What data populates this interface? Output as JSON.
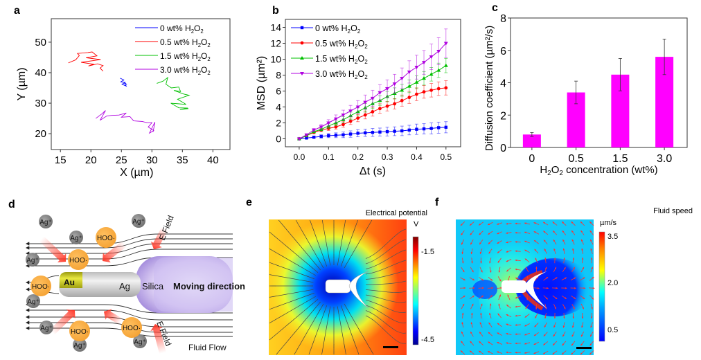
{
  "panel_labels": [
    "a",
    "b",
    "c",
    "d",
    "e",
    "f"
  ],
  "chart_data": [
    {
      "panel": "a",
      "type": "line",
      "xlabel": "X (µm)",
      "ylabel": "Y (µm)",
      "xlim": [
        13.5,
        42.8
      ],
      "ylim": [
        14.8,
        57.7
      ],
      "xticks": [
        15,
        20,
        25,
        30,
        35,
        40
      ],
      "yticks": [
        20,
        30,
        40,
        50
      ],
      "legend_position": "top-right",
      "series": [
        {
          "name": "0 wt% H2O2",
          "color": "#0000ff",
          "points": [
            [
              24.8,
              38.2
            ],
            [
              25.4,
              37.6
            ],
            [
              24.9,
              37.0
            ],
            [
              25.6,
              36.8
            ],
            [
              25.1,
              36.2
            ],
            [
              25.8,
              35.6
            ],
            [
              25.4,
              36.9
            ],
            [
              25.9,
              36.1
            ]
          ]
        },
        {
          "name": "0.5 wt% H2O2",
          "color": "#ff0000",
          "points": [
            [
              16.3,
              43.2
            ],
            [
              17.5,
              44.2
            ],
            [
              18.1,
              45.6
            ],
            [
              17.8,
              46.3
            ],
            [
              19.5,
              46.6
            ],
            [
              20.2,
              46.8
            ],
            [
              21.0,
              45.5
            ],
            [
              19.2,
              44.9
            ],
            [
              21.6,
              44.3
            ],
            [
              18.4,
              43.4
            ],
            [
              20.4,
              42.8
            ],
            [
              19.6,
              42.2
            ],
            [
              21.1,
              42.9
            ],
            [
              22.0,
              42.3
            ],
            [
              21.5,
              41.5
            ],
            [
              22.0,
              40.5
            ]
          ]
        },
        {
          "name": "1.5 wt% H2O2",
          "color": "#00c000",
          "points": [
            [
              30.8,
              36.5
            ],
            [
              31.8,
              37.2
            ],
            [
              32.6,
              38.4
            ],
            [
              32.3,
              36.2
            ],
            [
              33.2,
              35.0
            ],
            [
              34.4,
              35.3
            ],
            [
              34.7,
              33.8
            ],
            [
              33.6,
              34.2
            ],
            [
              35.2,
              33.0
            ],
            [
              36.1,
              32.6
            ],
            [
              34.2,
              31.3
            ],
            [
              35.6,
              29.6
            ],
            [
              33.1,
              30.0
            ],
            [
              34.4,
              28.5
            ],
            [
              35.9,
              28.4
            ],
            [
              34.6,
              27.9
            ],
            [
              36.0,
              28.2
            ]
          ]
        },
        {
          "name": "3.0 wt% H2O2",
          "color": "#b000e0",
          "points": [
            [
              20.8,
              25.0
            ],
            [
              21.8,
              26.5
            ],
            [
              22.4,
              27.6
            ],
            [
              21.5,
              24.4
            ],
            [
              22.6,
              25.8
            ],
            [
              23.4,
              26.0
            ],
            [
              24.6,
              26.1
            ],
            [
              25.8,
              26.8
            ],
            [
              25.0,
              25.4
            ],
            [
              26.4,
              25.6
            ],
            [
              27.0,
              24.2
            ],
            [
              28.4,
              24.0
            ],
            [
              29.2,
              23.6
            ],
            [
              30.0,
              23.6
            ],
            [
              29.4,
              22.2
            ],
            [
              30.3,
              21.0
            ],
            [
              29.6,
              20.2
            ],
            [
              30.5,
              23.8
            ],
            [
              30.2,
              20.6
            ]
          ]
        }
      ]
    },
    {
      "panel": "b",
      "type": "line",
      "xlabel": "Δt (s)",
      "ylabel": "MSD (µm²)",
      "xlim": [
        -0.047,
        0.55
      ],
      "ylim": [
        -1,
        15
      ],
      "xticks": [
        "0.0",
        "0.1",
        "0.2",
        "0.3",
        "0.4",
        "0.5"
      ],
      "yticks": [
        "0",
        "2",
        "4",
        "6",
        "8",
        "10",
        "12",
        "14"
      ],
      "legend_position": "top-left",
      "x": [
        0,
        0.025,
        0.05,
        0.075,
        0.1,
        0.125,
        0.15,
        0.175,
        0.2,
        0.225,
        0.25,
        0.275,
        0.3,
        0.325,
        0.35,
        0.375,
        0.4,
        0.425,
        0.45,
        0.475,
        0.5
      ],
      "series": [
        {
          "name": "0 wt% H2O2",
          "color": "#0000ff",
          "marker": "square",
          "values": [
            0,
            0.1,
            0.2,
            0.3,
            0.4,
            0.45,
            0.5,
            0.6,
            0.7,
            0.75,
            0.8,
            0.85,
            0.9,
            0.95,
            1.0,
            1.1,
            1.2,
            1.25,
            1.3,
            1.4,
            1.45
          ],
          "errors": [
            0,
            0.1,
            0.15,
            0.2,
            0.25,
            0.3,
            0.35,
            0.4,
            0.45,
            0.45,
            0.5,
            0.5,
            0.55,
            0.55,
            0.6,
            0.6,
            0.65,
            0.65,
            0.7,
            0.7,
            0.7
          ]
        },
        {
          "name": "0.5 wt% H2O2",
          "color": "#ff0000",
          "marker": "circle",
          "values": [
            0,
            0.4,
            0.8,
            1.1,
            1.3,
            1.5,
            1.8,
            2.2,
            2.6,
            3.0,
            3.4,
            3.8,
            4.1,
            4.4,
            4.8,
            5.2,
            5.6,
            5.9,
            6.1,
            6.3,
            6.4
          ],
          "errors": [
            0,
            0.1,
            0.15,
            0.2,
            0.25,
            0.3,
            0.35,
            0.4,
            0.45,
            0.5,
            0.55,
            0.6,
            0.6,
            0.65,
            0.7,
            0.75,
            0.8,
            0.8,
            0.85,
            0.85,
            0.9
          ]
        },
        {
          "name": "1.5 wt% H2O2",
          "color": "#00c000",
          "marker": "triangle-up",
          "values": [
            0,
            0.4,
            0.9,
            1.2,
            1.6,
            2.0,
            2.4,
            2.9,
            3.4,
            3.9,
            4.4,
            4.8,
            5.3,
            5.7,
            6.1,
            6.6,
            7.1,
            7.6,
            8.1,
            8.6,
            9.2
          ],
          "errors": [
            0,
            0.1,
            0.15,
            0.2,
            0.3,
            0.35,
            0.4,
            0.45,
            0.5,
            0.55,
            0.6,
            0.6,
            0.65,
            0.7,
            0.75,
            0.8,
            0.8,
            0.85,
            0.85,
            0.9,
            0.9
          ]
        },
        {
          "name": "3.0 wt% H2O2",
          "color": "#b000e0",
          "marker": "triangle-down",
          "values": [
            0,
            0.5,
            1.1,
            1.5,
            2.0,
            2.5,
            3.0,
            3.5,
            4.0,
            4.6,
            5.1,
            5.8,
            6.3,
            6.9,
            7.6,
            8.4,
            9.0,
            9.6,
            10.3,
            11.0,
            12.0
          ],
          "errors": [
            0,
            0.1,
            0.2,
            0.3,
            0.4,
            0.5,
            0.6,
            0.7,
            0.8,
            0.9,
            1.0,
            1.0,
            1.1,
            1.2,
            1.3,
            1.4,
            1.5,
            1.5,
            1.6,
            1.7,
            1.8
          ]
        }
      ]
    },
    {
      "panel": "c",
      "type": "bar",
      "xlabel": "H2O2 concentration (wt%)",
      "ylabel": "Diffusion coefficient (µm²/s)",
      "ylim": [
        0,
        8
      ],
      "yticks": [
        "0",
        "2",
        "4",
        "6",
        "8"
      ],
      "categories": [
        "0",
        "0.5",
        "1.5",
        "3.0"
      ],
      "values": [
        0.8,
        3.4,
        4.5,
        5.6
      ],
      "errors": [
        0.12,
        0.7,
        1.0,
        1.1
      ],
      "color": "#ff00ff"
    },
    {
      "panel": "e",
      "type": "heatmap",
      "colorbar_title": "Electrical potential",
      "colorbar_unit": "V",
      "colorbar_ticks": [
        "-1.5",
        "-4.5"
      ],
      "colorbar_range": [
        -4.9,
        -0.8
      ],
      "colormap": "jet"
    },
    {
      "panel": "f",
      "type": "heatmap",
      "colorbar_title": "Fluid speed",
      "colorbar_unit": "µm/s",
      "colorbar_ticks": [
        "3.5",
        "2.0",
        "0.5"
      ],
      "colorbar_range": [
        0.2,
        3.6
      ],
      "colormap": "jet"
    }
  ],
  "legend_labels": {
    "s0": "0 wt% H",
    "s05": "0.5 wt% H",
    "s15": "1.5 wt% H",
    "s30": "3.0 wt% H",
    "sub2": "2",
    "o": "O"
  },
  "schematic": {
    "ag_ion": "Ag⁺",
    "hoo": "HOO·",
    "au_label": "Au",
    "ag_label": "Ag",
    "silica_label": "Silica",
    "moving_direction": "Moving direction",
    "e_field_top": "E Field",
    "e_field_bottom": "E Field",
    "fluid_flow": "Fluid Flow"
  }
}
